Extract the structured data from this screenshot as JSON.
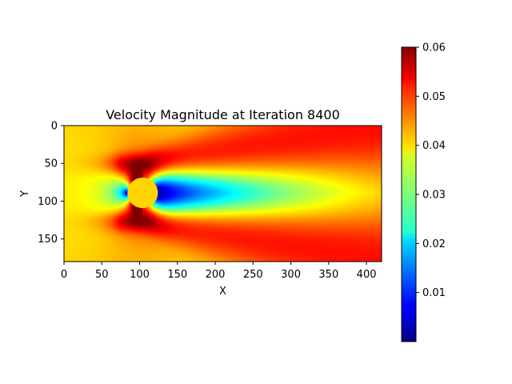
{
  "chart_data": {
    "type": "heatmap",
    "title": "Velocity Magnitude at Iteration 8400",
    "xlabel": "X",
    "ylabel": "Y",
    "xlim": [
      0,
      420
    ],
    "ylim": [
      180,
      0
    ],
    "x_ticks": [
      0,
      50,
      100,
      150,
      200,
      250,
      300,
      350,
      400
    ],
    "y_ticks": [
      0,
      50,
      100,
      150
    ],
    "colormap": "jet",
    "colorbar": {
      "range": [
        0.0,
        0.06
      ],
      "ticks": [
        "0.01",
        "0.02",
        "0.03",
        "0.04",
        "0.05",
        "0.06"
      ],
      "tick_values": [
        0.01,
        0.02,
        0.03,
        0.04,
        0.05,
        0.06
      ]
    },
    "obstacle": {
      "shape": "circle",
      "center": [
        104,
        89
      ],
      "radius": 20,
      "value": 0.04
    },
    "inflow_speed": 0.04
  }
}
